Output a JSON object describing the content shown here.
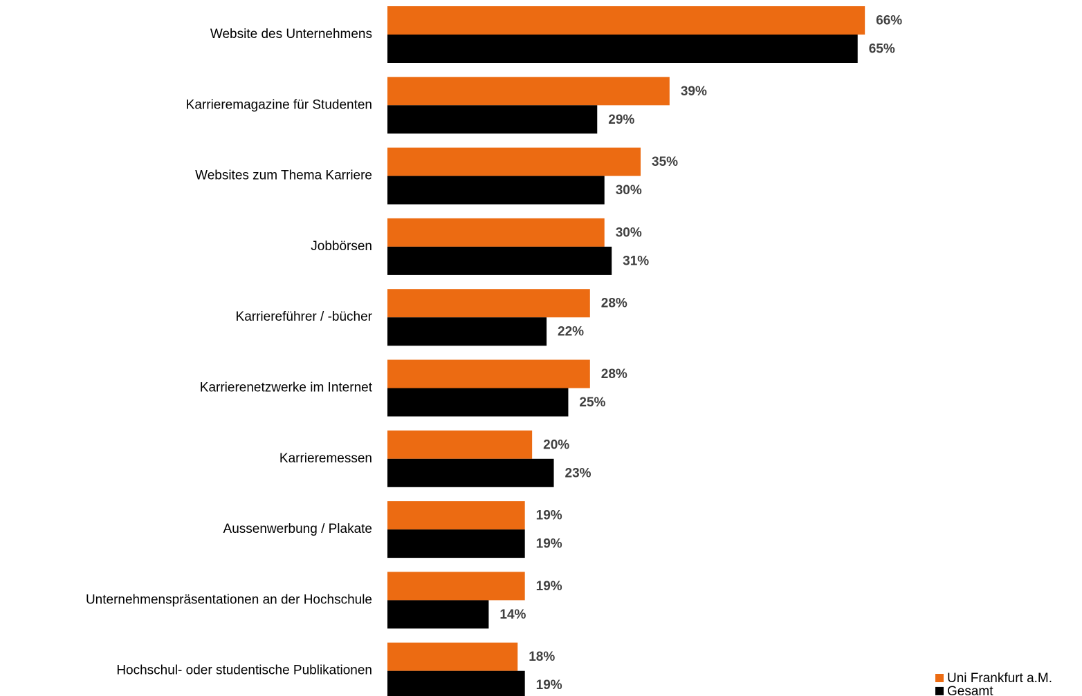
{
  "chart_data": {
    "type": "bar",
    "orientation": "horizontal",
    "categories": [
      "Website des Unternehmens",
      "Karrieremagazine für Studenten",
      "Websites zum Thema Karriere",
      "Jobbörsen",
      "Karriereführer / -bücher",
      "Karrierenetzwerke im Internet",
      "Karrieremessen",
      "Aussenwerbung / Plakate",
      "Unternehmenspräsentationen an der Hochschule",
      "Hochschul- oder studentische Publikationen"
    ],
    "series": [
      {
        "name": "Uni Frankfurt a.M.",
        "color": "#ec6b12",
        "values": [
          66,
          39,
          35,
          30,
          28,
          28,
          20,
          19,
          19,
          18
        ],
        "value_labels": [
          "66%",
          "39%",
          "35%",
          "30%",
          "28%",
          "28%",
          "20%",
          "19%",
          "19%",
          "18%"
        ]
      },
      {
        "name": "Gesamt",
        "color": "#000000",
        "values": [
          65,
          29,
          30,
          31,
          22,
          25,
          23,
          19,
          14,
          19
        ],
        "value_labels": [
          "65%",
          "29%",
          "30%",
          "31%",
          "22%",
          "25%",
          "23%",
          "19%",
          "14%",
          "19%"
        ]
      }
    ],
    "xlim": [
      0,
      70
    ],
    "legend": "lower right"
  }
}
